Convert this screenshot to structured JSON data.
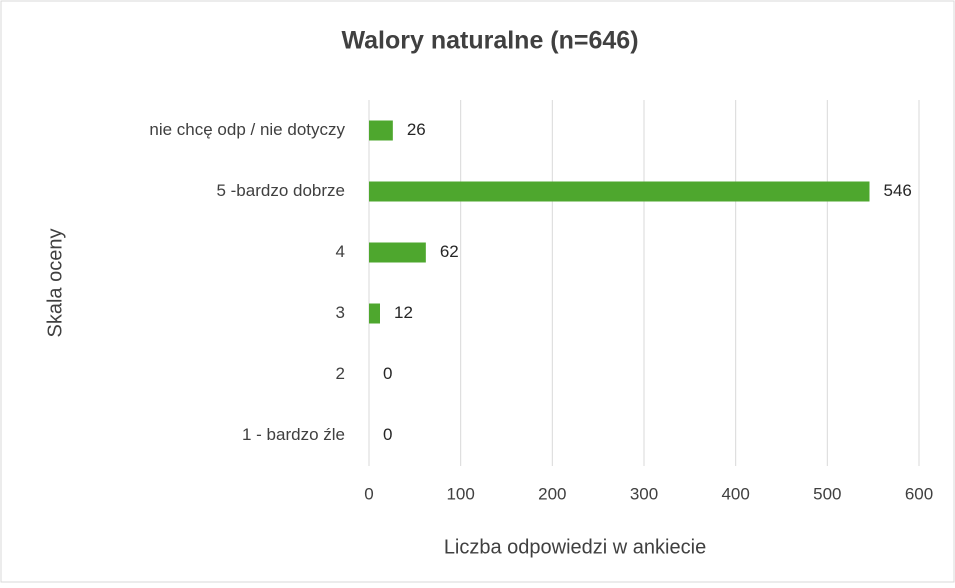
{
  "chart_data": {
    "type": "bar",
    "orientation": "horizontal",
    "title": "Walory naturalne (n=646)",
    "xlabel": "Liczba odpowiedzi w ankiecie",
    "ylabel": "Skala oceny",
    "categories": [
      "nie chcę odp / nie dotyczy",
      "5 -bardzo dobrze",
      "4",
      "3",
      "2",
      "1 - bardzo źle"
    ],
    "values": [
      26,
      546,
      62,
      12,
      0,
      0
    ],
    "color": "#4ea72e",
    "xlim": [
      0,
      600
    ],
    "xticks": [
      0,
      100,
      200,
      300,
      400,
      500,
      600
    ],
    "grid": true
  }
}
